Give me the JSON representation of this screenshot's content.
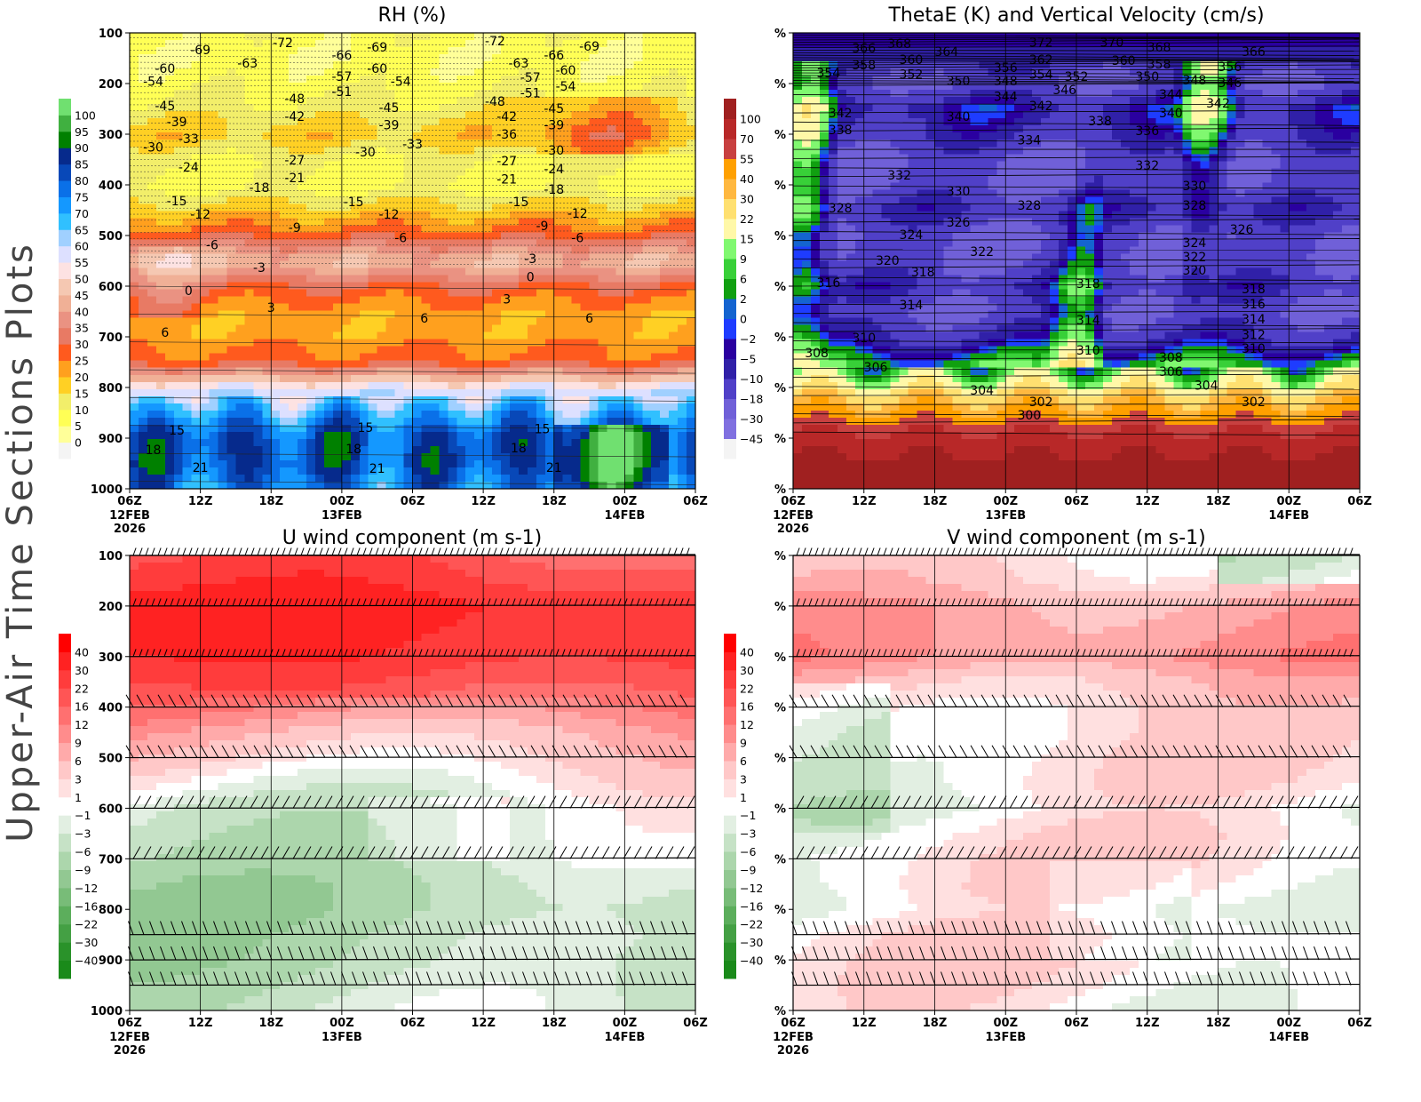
{
  "side_title": "Upper-Air Time Sections Plots",
  "x_ticks": [
    "06Z",
    "12Z",
    "18Z",
    "00Z",
    "06Z",
    "12Z",
    "18Z",
    "00Z",
    "06Z"
  ],
  "x_sublabels": [
    {
      "tick": 0,
      "lines": [
        "12FEB",
        "2026"
      ]
    },
    {
      "tick": 3,
      "lines": [
        "13FEB"
      ]
    },
    {
      "tick": 7,
      "lines": [
        "14FEB"
      ]
    }
  ],
  "chart_data": [
    {
      "id": "rh",
      "type": "heatmap",
      "title": "RH (%)",
      "x_range": [
        "12FEB 06Z",
        "14FEB 06Z"
      ],
      "y_axis": {
        "label_values": [
          "100",
          "200",
          "300",
          "400",
          "500",
          "600",
          "700",
          "800",
          "900",
          "1000"
        ],
        "range": [
          100,
          1000
        ],
        "inverted": true
      },
      "colorbar": {
        "levels": [
          0,
          5,
          10,
          15,
          20,
          25,
          30,
          35,
          40,
          45,
          50,
          55,
          60,
          65,
          70,
          75,
          80,
          85,
          90,
          95,
          100
        ],
        "colors": [
          "#f4f4f4",
          "#ffff99",
          "#ffff55",
          "#f2ee6a",
          "#ffd024",
          "#ffa01e",
          "#ff5a1e",
          "#e87a64",
          "#ea9282",
          "#f0b096",
          "#f5c8b2",
          "#fde2e2",
          "#dde0ff",
          "#a0d0ff",
          "#30c0ff",
          "#1498ff",
          "#0a70e8",
          "#0848b8",
          "#062a8c",
          "#008000",
          "#40b040",
          "#70e070"
        ]
      },
      "profile": {
        "pressure": [
          100,
          150,
          200,
          250,
          300,
          350,
          400,
          450,
          500,
          550,
          600,
          650,
          700,
          750,
          800,
          850,
          900,
          950,
          1000
        ],
        "values": [
          8,
          6,
          8,
          12,
          18,
          10,
          8,
          18,
          28,
          45,
          30,
          22,
          22,
          28,
          55,
          70,
          82,
          82,
          75
        ]
      },
      "contour_labels": [
        [
          "-72",
          "12FEB 19Z",
          119
        ],
        [
          "-69",
          "12FEB 12Z",
          133
        ],
        [
          "-60",
          "12FEB 09Z",
          170
        ],
        [
          "-54",
          "12FEB 08Z",
          196
        ],
        [
          "-63",
          "12FEB 16Z",
          160
        ],
        [
          "-45",
          "12FEB 09Z",
          244
        ],
        [
          "-39",
          "12FEB 10Z",
          275
        ],
        [
          "-33",
          "12FEB 11Z",
          309
        ],
        [
          "-30",
          "12FEB 08Z",
          325
        ],
        [
          "-24",
          "12FEB 11Z",
          365
        ],
        [
          "-48",
          "12FEB 20Z",
          230
        ],
        [
          "-42",
          "12FEB 20Z",
          265
        ],
        [
          "-27",
          "12FEB 20Z",
          351
        ],
        [
          "-21",
          "12FEB 20Z",
          386
        ],
        [
          "-18",
          "12FEB 17Z",
          405
        ],
        [
          "-15",
          "12FEB 10Z",
          432
        ],
        [
          "-12",
          "12FEB 12Z",
          458
        ],
        [
          "-9",
          "12FEB 20Z",
          484
        ],
        [
          "-6",
          "12FEB 13Z",
          518
        ],
        [
          "-3",
          "12FEB 17Z",
          563
        ],
        [
          "0",
          "12FEB 11Z",
          609
        ],
        [
          "3",
          "12FEB 18Z",
          642
        ],
        [
          "6",
          "12FEB 09Z",
          691
        ],
        [
          "15",
          "12FEB 10Z",
          884
        ],
        [
          "18",
          "12FEB 08Z",
          923
        ],
        [
          "21",
          "12FEB 12Z",
          958
        ],
        [
          "-66",
          "13FEB 00Z",
          144
        ],
        [
          "-57",
          "13FEB 00Z",
          186
        ],
        [
          "-51",
          "13FEB 00Z",
          216
        ],
        [
          "-69",
          "13FEB 03Z",
          128
        ],
        [
          "-60",
          "13FEB 03Z",
          170
        ],
        [
          "-54",
          "13FEB 05Z",
          196
        ],
        [
          "-45",
          "13FEB 04Z",
          247
        ],
        [
          "-39",
          "13FEB 04Z",
          282
        ],
        [
          "-33",
          "13FEB 06Z",
          319
        ],
        [
          "-30",
          "13FEB 02Z",
          335
        ],
        [
          "-15",
          "13FEB 01Z",
          433
        ],
        [
          "-12",
          "13FEB 04Z",
          458
        ],
        [
          "-6",
          "13FEB 05Z",
          504
        ],
        [
          "6",
          "13FEB 07Z",
          663
        ],
        [
          "15",
          "13FEB 02Z",
          879
        ],
        [
          "18",
          "13FEB 01Z",
          921
        ],
        [
          "21",
          "13FEB 03Z",
          960
        ],
        [
          "-72",
          "13FEB 13Z",
          116
        ],
        [
          "-63",
          "13FEB 15Z",
          160
        ],
        [
          "-57",
          "13FEB 16Z",
          188
        ],
        [
          "-51",
          "13FEB 16Z",
          218
        ],
        [
          "-48",
          "13FEB 13Z",
          235
        ],
        [
          "-42",
          "13FEB 14Z",
          265
        ],
        [
          "-36",
          "13FEB 14Z",
          300
        ],
        [
          "-27",
          "13FEB 14Z",
          353
        ],
        [
          "-21",
          "13FEB 14Z",
          389
        ],
        [
          "-15",
          "13FEB 15Z",
          433
        ],
        [
          "-9",
          "13FEB 17Z",
          481
        ],
        [
          "-3",
          "13FEB 16Z",
          546
        ],
        [
          "0",
          "13FEB 16Z",
          582
        ],
        [
          "3",
          "13FEB 14Z",
          625
        ],
        [
          "-66",
          "13FEB 18Z",
          144
        ],
        [
          "-60",
          "13FEB 19Z",
          174
        ],
        [
          "-54",
          "13FEB 19Z",
          205
        ],
        [
          "-45",
          "13FEB 18Z",
          249
        ],
        [
          "-39",
          "13FEB 18Z",
          282
        ],
        [
          "-30",
          "13FEB 18Z",
          332
        ],
        [
          "-24",
          "13FEB 18Z",
          368
        ],
        [
          "-18",
          "13FEB 18Z",
          409
        ],
        [
          "-12",
          "13FEB 20Z",
          456
        ],
        [
          "-6",
          "13FEB 20Z",
          504
        ],
        [
          "-69",
          "13FEB 21Z",
          126
        ],
        [
          "6",
          "13FEB 21Z",
          663
        ],
        [
          "15",
          "13FEB 17Z",
          882
        ],
        [
          "18",
          "13FEB 15Z",
          919
        ],
        [
          "21",
          "13FEB 18Z",
          958
        ]
      ]
    },
    {
      "id": "thetae",
      "type": "heatmap",
      "title": "ThetaE (K) and Vertical Velocity (cm/s)",
      "x_range": [
        "12FEB 06Z",
        "14FEB 06Z"
      ],
      "y_axis": {
        "label_values": [
          "%",
          "%",
          "%",
          "%",
          "%",
          "%",
          "%",
          "%",
          "%",
          "%"
        ],
        "range": [
          100,
          1000
        ],
        "inverted": true
      },
      "colorbar": {
        "levels": [
          -45,
          -30,
          -18,
          -10,
          -5,
          -2,
          0,
          2,
          6,
          9,
          15,
          22,
          30,
          40,
          55,
          70,
          100
        ],
        "colors": [
          "#f4f4f4",
          "#8070e0",
          "#7060d8",
          "#5040c8",
          "#3020a8",
          "#2a00a0",
          "#1e3cff",
          "#1464d0",
          "#10a010",
          "#38d038",
          "#80f870",
          "#fff8a8",
          "#ffe070",
          "#ffb840",
          "#ffa000",
          "#c84040",
          "#b82828",
          "#a02020"
        ]
      },
      "profile": {
        "pressure": [
          100,
          150,
          200,
          250,
          300,
          350,
          400,
          450,
          500,
          550,
          600,
          650,
          700,
          750,
          800,
          850,
          900,
          950,
          1000
        ],
        "values": [
          -1,
          -10,
          -18,
          -5,
          -10,
          -18,
          -18,
          -10,
          -18,
          -18,
          -10,
          -18,
          -10,
          4,
          20,
          45,
          80,
          110,
          110
        ]
      },
      "contour_labels": [
        [
          "366",
          "12FEB 12Z",
          130
        ],
        [
          "368",
          "12FEB 15Z",
          121
        ],
        [
          "364",
          "12FEB 19Z",
          137
        ],
        [
          "358",
          "12FEB 12Z",
          163
        ],
        [
          "360",
          "12FEB 16Z",
          153
        ],
        [
          "354",
          "12FEB 09Z",
          179
        ],
        [
          "352",
          "12FEB 16Z",
          182
        ],
        [
          "350",
          "12FEB 20Z",
          195
        ],
        [
          "342",
          "12FEB 10Z",
          258
        ],
        [
          "338",
          "12FEB 10Z",
          291
        ],
        [
          "340",
          "12FEB 20Z",
          265
        ],
        [
          "332",
          "12FEB 15Z",
          381
        ],
        [
          "330",
          "12FEB 20Z",
          412
        ],
        [
          "328",
          "12FEB 10Z",
          446
        ],
        [
          "326",
          "12FEB 20Z",
          474
        ],
        [
          "324",
          "12FEB 16Z",
          498
        ],
        [
          "322",
          "12FEB 22Z",
          532
        ],
        [
          "320",
          "12FEB 14Z",
          549
        ],
        [
          "318",
          "12FEB 17Z",
          572
        ],
        [
          "316",
          "12FEB 09Z",
          593
        ],
        [
          "314",
          "12FEB 16Z",
          637
        ],
        [
          "310",
          "12FEB 12Z",
          702
        ],
        [
          "308",
          "12FEB 08Z",
          732
        ],
        [
          "306",
          "12FEB 13Z",
          760
        ],
        [
          "304",
          "12FEB 22Z",
          805
        ],
        [
          "302",
          "13FEB 03Z",
          828
        ],
        [
          "300",
          "13FEB 02Z",
          854
        ],
        [
          "372",
          "13FEB 03Z",
          118
        ],
        [
          "362",
          "13FEB 03Z",
          153
        ],
        [
          "356",
          "13FEB 00Z",
          168
        ],
        [
          "348",
          "13FEB 00Z",
          195
        ],
        [
          "354",
          "13FEB 03Z",
          182
        ],
        [
          "352",
          "13FEB 06Z",
          186
        ],
        [
          "344",
          "13FEB 00Z",
          225
        ],
        [
          "342",
          "13FEB 03Z",
          244
        ],
        [
          "346",
          "13FEB 05Z",
          212
        ],
        [
          "334",
          "13FEB 02Z",
          311
        ],
        [
          "328",
          "13FEB 02Z",
          440
        ],
        [
          "318",
          "13FEB 07Z",
          595
        ],
        [
          "314",
          "13FEB 07Z",
          667
        ],
        [
          "310",
          "13FEB 07Z",
          726
        ],
        [
          "338",
          "13FEB 08Z",
          274
        ],
        [
          "370",
          "13FEB 09Z",
          118
        ],
        [
          "368",
          "13FEB 13Z",
          128
        ],
        [
          "360",
          "13FEB 10Z",
          154
        ],
        [
          "358",
          "13FEB 13Z",
          161
        ],
        [
          "350",
          "13FEB 12Z",
          186
        ],
        [
          "336",
          "13FEB 12Z",
          293
        ],
        [
          "332",
          "13FEB 12Z",
          361
        ],
        [
          "344",
          "13FEB 14Z",
          221
        ],
        [
          "340",
          "13FEB 14Z",
          258
        ],
        [
          "348",
          "13FEB 16Z",
          193
        ],
        [
          "346",
          "13FEB 19Z",
          198
        ],
        [
          "356",
          "13FEB 19Z",
          167
        ],
        [
          "366",
          "13FEB 21Z",
          137
        ],
        [
          "342",
          "13FEB 18Z",
          239
        ],
        [
          "330",
          "13FEB 16Z",
          402
        ],
        [
          "328",
          "13FEB 16Z",
          440
        ],
        [
          "326",
          "13FEB 20Z",
          488
        ],
        [
          "324",
          "13FEB 16Z",
          514
        ],
        [
          "322",
          "13FEB 16Z",
          542
        ],
        [
          "320",
          "13FEB 16Z",
          568
        ],
        [
          "318",
          "13FEB 21Z",
          605
        ],
        [
          "316",
          "13FEB 21Z",
          635
        ],
        [
          "314",
          "13FEB 21Z",
          665
        ],
        [
          "312",
          "13FEB 21Z",
          696
        ],
        [
          "310",
          "13FEB 21Z",
          723
        ],
        [
          "308",
          "13FEB 14Z",
          740
        ],
        [
          "306",
          "13FEB 14Z",
          768
        ],
        [
          "304",
          "13FEB 17Z",
          796
        ],
        [
          "302",
          "13FEB 21Z",
          828
        ]
      ]
    },
    {
      "id": "u",
      "type": "heatmap",
      "title": "U wind component (m s-1)",
      "x_range": [
        "12FEB 06Z",
        "14FEB 06Z"
      ],
      "y_axis": {
        "label_values": [
          "100",
          "200",
          "300",
          "400",
          "500",
          "600",
          "700",
          "800",
          "900",
          "1000"
        ],
        "range": [
          100,
          1000
        ],
        "inverted": true
      },
      "colorbar": {
        "levels": [
          -40,
          -30,
          -22,
          -16,
          -12,
          -9,
          -6,
          -3,
          -1,
          1,
          3,
          6,
          9,
          12,
          16,
          22,
          30,
          40
        ],
        "colors": [
          "#1a8a1a",
          "#2a922a",
          "#44a044",
          "#5cae5c",
          "#78bc78",
          "#92c892",
          "#acd6ac",
          "#c6e2c6",
          "#e2efe2",
          "#ffffff",
          "#ffe0e0",
          "#ffc8c8",
          "#ffaaaa",
          "#ff8c8c",
          "#ff7070",
          "#ff5555",
          "#ff3c3c",
          "#ff2222",
          "#ff0000"
        ]
      },
      "profile": {
        "pressure": [
          100,
          150,
          200,
          250,
          300,
          350,
          400,
          450,
          500,
          550,
          600,
          650,
          700,
          750,
          800,
          850,
          900,
          950,
          1000
        ],
        "values": [
          16,
          22,
          31,
          28,
          25,
          18,
          12,
          7,
          4,
          1,
          -2,
          -3,
          -4,
          -6,
          -7,
          -6,
          -6,
          -5,
          -4
        ]
      },
      "barb_levels": [
        100,
        200,
        300,
        400,
        500,
        600,
        700,
        850,
        900,
        950
      ]
    },
    {
      "id": "v",
      "type": "heatmap",
      "title": "V wind component (m s-1)",
      "x_range": [
        "12FEB 06Z",
        "14FEB 06Z"
      ],
      "y_axis": {
        "label_values": [
          "%",
          "%",
          "%",
          "%",
          "%",
          "%",
          "%",
          "%",
          "%",
          "%"
        ],
        "range": [
          100,
          1000
        ],
        "inverted": true
      },
      "colorbar": {
        "levels": [
          -40,
          -30,
          -22,
          -16,
          -12,
          -9,
          -6,
          -3,
          -1,
          1,
          3,
          6,
          9,
          12,
          16,
          22,
          30,
          40
        ],
        "colors": [
          "#1a8a1a",
          "#2a922a",
          "#44a044",
          "#5cae5c",
          "#78bc78",
          "#92c892",
          "#acd6ac",
          "#c6e2c6",
          "#e2efe2",
          "#ffffff",
          "#ffe0e0",
          "#ffc8c8",
          "#ffaaaa",
          "#ff8c8c",
          "#ff7070",
          "#ff5555",
          "#ff3c3c",
          "#ff2222",
          "#ff0000"
        ]
      },
      "profile": {
        "pressure": [
          100,
          150,
          200,
          250,
          300,
          350,
          400,
          450,
          500,
          550,
          600,
          650,
          700,
          750,
          800,
          850,
          900,
          950,
          1000
        ],
        "values": [
          2,
          4,
          8,
          9,
          10,
          5,
          3,
          2,
          2,
          1.5,
          0,
          1.5,
          2,
          1.5,
          0,
          2,
          2,
          1.5,
          0.5
        ]
      },
      "barb_levels": [
        100,
        200,
        300,
        400,
        500,
        600,
        700,
        850,
        900,
        950
      ]
    }
  ]
}
